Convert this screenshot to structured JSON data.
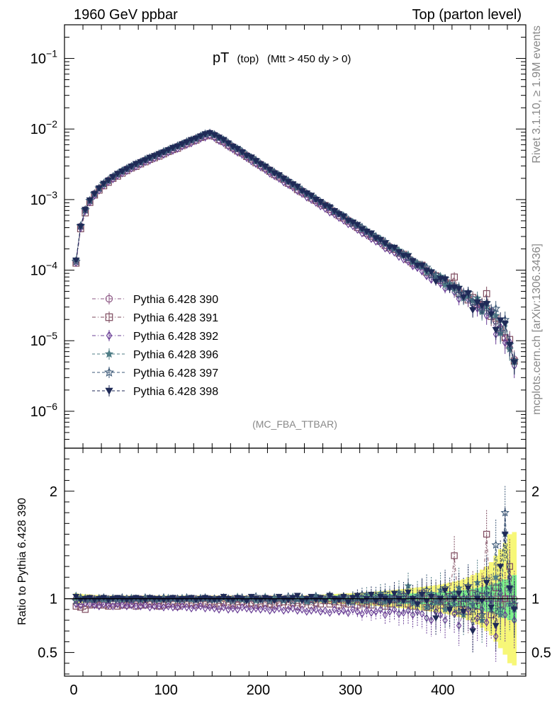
{
  "header": {
    "left": "1960 GeV ppbar",
    "right": "Top (parton level)"
  },
  "side_labels": {
    "rivet": "Rivet 3.1.10, ≥ 1.9M events",
    "mcplots": "mcplots.cern.ch [arXiv:1306.3436]"
  },
  "plot_title": {
    "main": "pT",
    "sub1": "(top)",
    "sub2": "(Mtt > 450 dy > 0)"
  },
  "watermark": "(MC_FBA_TTBAR)",
  "ratio_ylabel": "Ratio to Pythia 6.428 390",
  "colors": {
    "s390": "#8e5a86",
    "s391": "#7d4a5e",
    "s392": "#6a3f96",
    "s396": "#4f7d86",
    "s397": "#3d5a78",
    "s398": "#1f2a57",
    "band_yellow": "#f7f777",
    "band_green": "#7bf18a"
  },
  "chart_data": [
    {
      "type": "line",
      "panel": "main",
      "scale": "log",
      "xlim": [
        -10,
        490
      ],
      "ylim": [
        3e-07,
        0.3
      ],
      "y_ticks": [
        "10^-1",
        "10^-2",
        "10^-3",
        "10^-4",
        "10^-5",
        "10^-6"
      ],
      "legend": "lower-left",
      "series_names": [
        "Pythia 6.428 390",
        "Pythia 6.428 391",
        "Pythia 6.428 392",
        "Pythia 6.428 396",
        "Pythia 6.428 397",
        "Pythia 6.428 398"
      ],
      "x": [
        2.5,
        7.5,
        12.5,
        17.5,
        22.5,
        27.5,
        32.5,
        37.5,
        42.5,
        47.5,
        52.5,
        57.5,
        62.5,
        67.5,
        72.5,
        77.5,
        82.5,
        87.5,
        92.5,
        97.5,
        102.5,
        107.5,
        112.5,
        117.5,
        122.5,
        127.5,
        132.5,
        137.5,
        142.5,
        147.5,
        152.5,
        157.5,
        162.5,
        167.5,
        172.5,
        177.5,
        182.5,
        187.5,
        192.5,
        197.5,
        202.5,
        207.5,
        212.5,
        217.5,
        222.5,
        227.5,
        232.5,
        237.5,
        242.5,
        247.5,
        252.5,
        257.5,
        262.5,
        267.5,
        272.5,
        277.5,
        282.5,
        287.5,
        292.5,
        297.5,
        302.5,
        307.5,
        312.5,
        317.5,
        322.5,
        327.5,
        332.5,
        337.5,
        342.5,
        347.5,
        352.5,
        357.5,
        362.5,
        367.5,
        372.5,
        377.5,
        382.5,
        387.5,
        392.5,
        397.5,
        402.5,
        407.5,
        412.5,
        417.5,
        422.5,
        427.5,
        432.5,
        437.5,
        442.5,
        447.5,
        452.5,
        457.5,
        462.5,
        467.5,
        472.5,
        477.5
      ],
      "reference_values": [
        0.000135,
        0.00042,
        0.00072,
        0.00097,
        0.00122,
        0.00145,
        0.00167,
        0.00189,
        0.0021,
        0.00231,
        0.00252,
        0.00274,
        0.00295,
        0.00318,
        0.00341,
        0.00365,
        0.0039,
        0.00416,
        0.00444,
        0.00473,
        0.00504,
        0.00538,
        0.00574,
        0.00612,
        0.00652,
        0.00695,
        0.00741,
        0.0079,
        0.0084,
        0.0088,
        0.0083,
        0.0076,
        0.0069,
        0.0063,
        0.0057,
        0.0052,
        0.00472,
        0.00429,
        0.0039,
        0.00354,
        0.00322,
        0.00292,
        0.00265,
        0.00241,
        0.00219,
        0.00199,
        0.00181,
        0.00164,
        0.00149,
        0.00135,
        0.00123,
        0.00112,
        0.00101,
        0.00092,
        0.00084,
        0.00076,
        0.00069,
        0.00063,
        0.000571,
        0.000519,
        0.000471,
        0.000428,
        0.000389,
        0.000353,
        0.000321,
        0.000291,
        0.000265,
        0.000241,
        0.000218,
        0.000199,
        0.000181,
        0.000164,
        0.000149,
        0.000135,
        0.000123,
        0.000112,
        0.000101,
        9.2e-05,
        8.4e-05,
        7.6e-05,
        6.9e-05,
        6.3e-05,
        5.7e-05,
        5.2e-05,
        4.7e-05,
        4.3e-05,
        3.9e-05,
        3.5e-05,
        3.2e-05,
        2.9e-05,
        2.6e-05,
        1.9e-05,
        1.5e-05,
        1.1e-05,
        8e-06,
        5.5e-06
      ]
    },
    {
      "type": "line",
      "panel": "ratio",
      "xlim": [
        -10,
        490
      ],
      "ylim": [
        0.28,
        2.4
      ],
      "x_ticks": [
        0,
        100,
        200,
        300,
        400
      ],
      "y_ticks": [
        0.5,
        1,
        2
      ],
      "reference_line": 1.0,
      "series": [
        {
          "name": "Pythia 6.428 390",
          "marker": "circle",
          "values": [
            1.0,
            1.0,
            1.0,
            1.0,
            1.0,
            1.0,
            1.0,
            1.0,
            1.0,
            1.0,
            1.0,
            1.0,
            1.0,
            1.0,
            1.0,
            1.0,
            1.0,
            1.0,
            1.0,
            1.0,
            1.0,
            1.0,
            1.0,
            1.0,
            1.0,
            1.0,
            1.0,
            1.0,
            1.0,
            1.0,
            1.0,
            1.0,
            1.0,
            1.0,
            1.0,
            1.0,
            1.0,
            1.0,
            1.0,
            1.0,
            1.0,
            1.0,
            1.0,
            1.0,
            1.0,
            1.0,
            1.0,
            1.0,
            1.0,
            1.0,
            1.0,
            1.0,
            1.0,
            1.0,
            1.0,
            1.0,
            1.0,
            1.0,
            1.0,
            1.0,
            1.0,
            1.0,
            1.0,
            1.0,
            1.0,
            1.0,
            1.0,
            1.0,
            1.0,
            1.0,
            1.0,
            1.0,
            1.0,
            1.0,
            1.0,
            1.0,
            1.0,
            1.0,
            1.0,
            1.0,
            1.0,
            1.0,
            1.0,
            1.0,
            1.0,
            1.0,
            1.0,
            1.0,
            1.0,
            1.0,
            1.0,
            1.0,
            1.0,
            1.0,
            1.0,
            1.0
          ]
        },
        {
          "name": "Pythia 6.428 391",
          "marker": "square",
          "values": [
            0.93,
            0.92,
            0.9,
            0.94,
            0.95,
            0.94,
            0.94,
            0.93,
            0.95,
            0.93,
            0.94,
            0.94,
            0.95,
            0.93,
            0.94,
            0.94,
            0.95,
            0.94,
            0.93,
            0.94,
            0.95,
            0.95,
            0.93,
            0.95,
            0.95,
            0.96,
            0.94,
            0.96,
            0.95,
            0.94,
            0.95,
            0.93,
            0.96,
            0.94,
            0.95,
            0.94,
            0.97,
            0.95,
            0.96,
            0.94,
            0.95,
            0.96,
            0.95,
            0.94,
            0.96,
            0.97,
            0.94,
            0.96,
            0.93,
            0.95,
            0.97,
            0.94,
            0.96,
            0.95,
            0.98,
            0.95,
            0.97,
            0.94,
            0.96,
            0.95,
            0.98,
            0.94,
            0.96,
            0.95,
            0.94,
            0.98,
            0.97,
            0.93,
            0.95,
            0.99,
            0.96,
            1.02,
            0.95,
            0.93,
            0.98,
            1.05,
            0.92,
            0.95,
            0.99,
            0.94,
            0.97,
            1.02,
            1.4,
            0.9,
            0.95,
            0.88,
            1.05,
            0.93,
            1.02,
            1.6,
            0.85,
            1.1,
            0.95,
            1.0,
            1.3,
            0.93
          ]
        },
        {
          "name": "Pythia 6.428 392",
          "marker": "diamond",
          "values": [
            0.95,
            0.94,
            0.96,
            0.95,
            0.94,
            0.93,
            0.95,
            0.94,
            0.93,
            0.95,
            0.94,
            0.93,
            0.94,
            0.93,
            0.93,
            0.94,
            0.92,
            0.93,
            0.93,
            0.92,
            0.93,
            0.92,
            0.92,
            0.93,
            0.92,
            0.91,
            0.92,
            0.93,
            0.91,
            0.92,
            0.91,
            0.9,
            0.92,
            0.9,
            0.91,
            0.9,
            0.92,
            0.91,
            0.9,
            0.91,
            0.9,
            0.91,
            0.89,
            0.9,
            0.91,
            0.89,
            0.9,
            0.91,
            0.89,
            0.9,
            0.88,
            0.89,
            0.9,
            0.88,
            0.89,
            0.87,
            0.9,
            0.88,
            0.89,
            0.87,
            0.9,
            0.88,
            0.86,
            0.89,
            0.87,
            0.88,
            0.9,
            0.85,
            0.88,
            0.9,
            0.86,
            0.87,
            0.89,
            0.85,
            0.88,
            0.86,
            0.82,
            0.8,
            0.88,
            0.85,
            0.8,
            0.9,
            0.86,
            0.75,
            0.88,
            0.9,
            0.72,
            0.82,
            0.9,
            0.78,
            0.95,
            0.65,
            1.05,
            0.85,
            1.2,
            0.8
          ]
        },
        {
          "name": "Pythia 6.428 396",
          "marker": "star-filled",
          "values": [
            1.03,
            1.0,
            1.01,
            0.99,
            1.0,
            1.01,
            0.99,
            1.0,
            1.01,
            1.0,
            0.99,
            1.0,
            1.01,
            1.0,
            0.99,
            1.0,
            1.01,
            1.0,
            0.99,
            1.0,
            1.01,
            1.0,
            0.99,
            1.01,
            1.0,
            0.99,
            1.0,
            1.01,
            1.0,
            1.0,
            0.99,
            1.0,
            1.01,
            0.99,
            1.0,
            1.02,
            0.99,
            1.0,
            1.01,
            0.98,
            1.0,
            1.02,
            0.99,
            1.0,
            1.01,
            0.98,
            1.0,
            1.02,
            0.99,
            1.01,
            0.97,
            1.0,
            1.03,
            0.99,
            1.0,
            1.02,
            0.98,
            1.01,
            1.0,
            0.97,
            1.02,
            1.0,
            0.98,
            1.04,
            0.99,
            1.0,
            1.05,
            0.97,
            1.02,
            1.0,
            1.06,
            0.98,
            1.12,
            0.96,
            1.03,
            1.0,
            0.92,
            1.05,
            0.97,
            1.08,
            0.9,
            1.02,
            0.95,
            1.1,
            0.85,
            1.0,
            0.95,
            1.15,
            0.8,
            1.05,
            0.9,
            1.2,
            0.85,
            1.6,
            0.95,
            0.9
          ]
        },
        {
          "name": "Pythia 6.428 397",
          "marker": "star-open",
          "values": [
            0.98,
            1.01,
            0.99,
            1.0,
            0.99,
            1.0,
            1.01,
            0.99,
            1.0,
            0.99,
            1.01,
            1.0,
            0.99,
            1.0,
            0.99,
            1.01,
            1.0,
            0.99,
            1.0,
            1.01,
            0.99,
            1.0,
            1.0,
            0.99,
            1.01,
            1.0,
            0.99,
            1.0,
            1.01,
            0.99,
            1.0,
            0.99,
            1.01,
            1.0,
            0.98,
            1.0,
            1.01,
            0.99,
            1.0,
            1.02,
            0.99,
            1.0,
            0.98,
            1.01,
            1.0,
            0.99,
            1.02,
            0.98,
            1.0,
            1.01,
            0.99,
            0.98,
            1.02,
            1.0,
            0.99,
            1.03,
            0.98,
            1.0,
            1.02,
            0.99,
            0.97,
            1.01,
            1.04,
            0.98,
            1.0,
            1.03,
            0.97,
            1.05,
            0.99,
            1.02,
            0.96,
            1.04,
            0.99,
            1.0,
            0.95,
            1.05,
            1.08,
            0.93,
            1.02,
            0.98,
            1.1,
            0.92,
            1.05,
            0.88,
            1.0,
            1.12,
            0.9,
            1.05,
            0.85,
            1.18,
            1.0,
            1.5,
            0.9,
            1.8,
            1.1,
            0.95
          ]
        },
        {
          "name": "Pythia 6.428 398",
          "marker": "triangle-down",
          "values": [
            1.02,
            0.99,
            1.0,
            1.01,
            0.99,
            1.0,
            1.01,
            0.99,
            1.0,
            1.01,
            1.0,
            0.99,
            1.0,
            1.01,
            1.0,
            0.99,
            1.01,
            1.0,
            1.0,
            0.99,
            1.0,
            1.01,
            0.99,
            1.0,
            1.0,
            1.01,
            0.99,
            1.0,
            1.01,
            1.0,
            0.99,
            1.0,
            1.02,
            1.0,
            0.99,
            1.01,
            1.0,
            0.98,
            1.02,
            1.0,
            0.99,
            1.01,
            1.0,
            0.98,
            1.02,
            1.0,
            0.99,
            1.01,
            1.03,
            0.98,
            1.0,
            1.02,
            0.99,
            1.01,
            0.98,
            1.03,
            1.0,
            0.99,
            1.02,
            0.97,
            1.01,
            1.03,
            0.98,
            1.0,
            1.04,
            0.98,
            1.02,
            1.0,
            0.97,
            1.05,
            1.0,
            0.98,
            1.06,
            1.0,
            0.95,
            1.04,
            0.98,
            1.02,
            0.82,
            1.0,
            1.08,
            0.9,
            1.0,
            1.05,
            0.88,
            1.1,
            0.7,
            1.0,
            0.98,
            1.15,
            0.92,
            0.75,
            1.3,
            1.6,
            1.1,
            0.9
          ]
        }
      ],
      "band_yellow_halfwidth": [
        0.05,
        0.045,
        0.04,
        0.04,
        0.035,
        0.035,
        0.03,
        0.03,
        0.03,
        0.03,
        0.03,
        0.03,
        0.03,
        0.03,
        0.03,
        0.03,
        0.03,
        0.03,
        0.03,
        0.03,
        0.03,
        0.03,
        0.03,
        0.03,
        0.03,
        0.03,
        0.03,
        0.03,
        0.03,
        0.03,
        0.03,
        0.03,
        0.03,
        0.03,
        0.03,
        0.03,
        0.03,
        0.03,
        0.03,
        0.03,
        0.03,
        0.03,
        0.03,
        0.03,
        0.03,
        0.03,
        0.03,
        0.03,
        0.03,
        0.03,
        0.032,
        0.034,
        0.036,
        0.038,
        0.04,
        0.042,
        0.044,
        0.046,
        0.048,
        0.05,
        0.052,
        0.055,
        0.058,
        0.061,
        0.064,
        0.067,
        0.07,
        0.074,
        0.078,
        0.082,
        0.086,
        0.09,
        0.095,
        0.1,
        0.105,
        0.11,
        0.115,
        0.12,
        0.126,
        0.132,
        0.14,
        0.15,
        0.16,
        0.17,
        0.18,
        0.2,
        0.22,
        0.24,
        0.27,
        0.3,
        0.34,
        0.4,
        0.46,
        0.52,
        0.6,
        0.62
      ],
      "band_green_halfwidth": [
        0.03,
        0.025,
        0.02,
        0.02,
        0.015,
        0.015,
        0.015,
        0.015,
        0.015,
        0.015,
        0.015,
        0.015,
        0.015,
        0.015,
        0.015,
        0.015,
        0.015,
        0.015,
        0.015,
        0.015,
        0.015,
        0.015,
        0.015,
        0.015,
        0.015,
        0.015,
        0.015,
        0.015,
        0.015,
        0.015,
        0.015,
        0.015,
        0.015,
        0.015,
        0.015,
        0.015,
        0.015,
        0.015,
        0.015,
        0.015,
        0.016,
        0.017,
        0.018,
        0.019,
        0.02,
        0.021,
        0.022,
        0.023,
        0.024,
        0.025,
        0.026,
        0.027,
        0.028,
        0.029,
        0.03,
        0.031,
        0.032,
        0.033,
        0.034,
        0.035,
        0.036,
        0.037,
        0.038,
        0.039,
        0.04,
        0.041,
        0.042,
        0.043,
        0.044,
        0.045,
        0.046,
        0.047,
        0.048,
        0.049,
        0.05,
        0.052,
        0.054,
        0.056,
        0.058,
        0.06,
        0.064,
        0.068,
        0.072,
        0.076,
        0.08,
        0.086,
        0.092,
        0.1,
        0.11,
        0.12,
        0.13,
        0.145,
        0.16,
        0.18,
        0.2,
        0.22
      ]
    }
  ]
}
